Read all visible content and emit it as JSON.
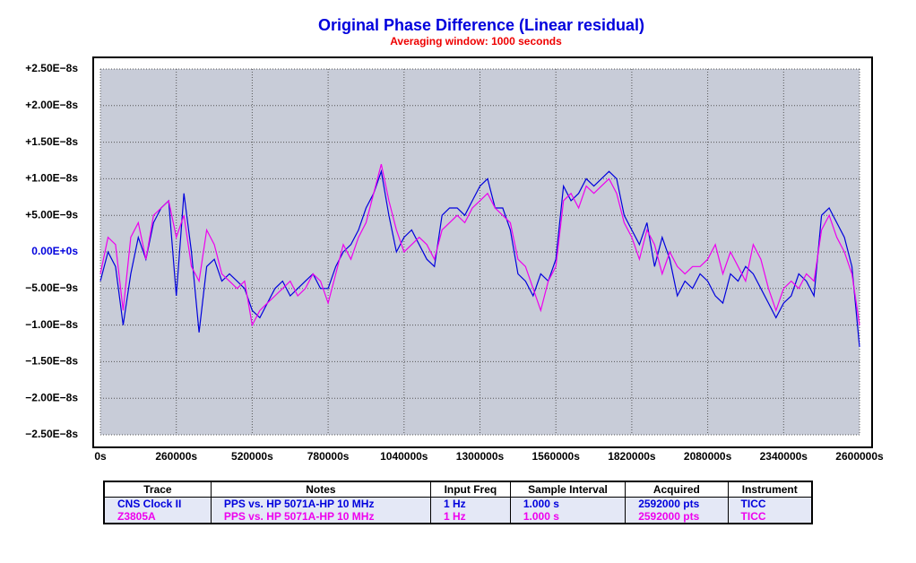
{
  "chart_data": {
    "type": "line",
    "title": "Original Phase Difference (Linear residual)",
    "subtitle": "Averaging window: 1000 seconds",
    "x": [
      0,
      26000,
      52000,
      78000,
      104000,
      130000,
      156000,
      182000,
      208000,
      234000,
      260000,
      286000,
      312000,
      338000,
      364000,
      390000,
      416000,
      442000,
      468000,
      494000,
      520000,
      546000,
      572000,
      598000,
      624000,
      650000,
      676000,
      702000,
      728000,
      754000,
      780000,
      806000,
      832000,
      858000,
      884000,
      910000,
      936000,
      962000,
      988000,
      1014000,
      1040000,
      1066000,
      1092000,
      1118000,
      1144000,
      1170000,
      1196000,
      1222000,
      1248000,
      1274000,
      1300000,
      1326000,
      1352000,
      1378000,
      1404000,
      1430000,
      1456000,
      1482000,
      1508000,
      1534000,
      1560000,
      1586000,
      1612000,
      1638000,
      1664000,
      1690000,
      1716000,
      1742000,
      1768000,
      1794000,
      1820000,
      1846000,
      1872000,
      1898000,
      1924000,
      1950000,
      1976000,
      2002000,
      2028000,
      2054000,
      2080000,
      2106000,
      2132000,
      2158000,
      2184000,
      2210000,
      2236000,
      2262000,
      2288000,
      2314000,
      2340000,
      2366000,
      2392000,
      2418000,
      2444000,
      2470000,
      2496000,
      2522000,
      2548000,
      2574000,
      2600000
    ],
    "series": [
      {
        "name": "CNS Clock II",
        "color": "#0000dd",
        "values": [
          -4e-09,
          0,
          -2e-09,
          -1e-08,
          -3e-09,
          2e-09,
          -1e-09,
          4e-09,
          6e-09,
          7e-09,
          -6e-09,
          8e-09,
          0,
          -1.1e-08,
          -2e-09,
          -1e-09,
          -4e-09,
          -3e-09,
          -4e-09,
          -5e-09,
          -8e-09,
          -9e-09,
          -7e-09,
          -5e-09,
          -4e-09,
          -6e-09,
          -5e-09,
          -4e-09,
          -3e-09,
          -5e-09,
          -5e-09,
          -2e-09,
          0,
          1e-09,
          3e-09,
          6e-09,
          8e-09,
          1.1e-08,
          5e-09,
          0,
          2e-09,
          3e-09,
          1e-09,
          -1e-09,
          -2e-09,
          5e-09,
          6e-09,
          6e-09,
          5e-09,
          7e-09,
          9e-09,
          1e-08,
          6e-09,
          6e-09,
          3e-09,
          -3e-09,
          -4e-09,
          -6e-09,
          -3e-09,
          -4e-09,
          -1e-09,
          9e-09,
          7e-09,
          8e-09,
          1e-08,
          9e-09,
          1e-08,
          1.1e-08,
          1e-08,
          5e-09,
          3e-09,
          1e-09,
          4e-09,
          -2e-09,
          2e-09,
          -1e-09,
          -6e-09,
          -4e-09,
          -5e-09,
          -3e-09,
          -4e-09,
          -6e-09,
          -7e-09,
          -3e-09,
          -4e-09,
          -2e-09,
          -3e-09,
          -5e-09,
          -7e-09,
          -9e-09,
          -7e-09,
          -6e-09,
          -3e-09,
          -4e-09,
          -6e-09,
          5e-09,
          6e-09,
          4e-09,
          2e-09,
          -2e-09,
          -1.3e-08
        ]
      },
      {
        "name": "Z3805A",
        "color": "#ee00ee",
        "values": [
          -3e-09,
          2e-09,
          1e-09,
          -8e-09,
          2e-09,
          4e-09,
          -1e-09,
          5e-09,
          6e-09,
          7e-09,
          2e-09,
          5e-09,
          -2e-09,
          -4e-09,
          3e-09,
          1e-09,
          -3e-09,
          -4e-09,
          -5e-09,
          -4e-09,
          -1e-08,
          -8e-09,
          -7e-09,
          -6e-09,
          -5e-09,
          -4e-09,
          -6e-09,
          -5e-09,
          -3e-09,
          -4e-09,
          -7e-09,
          -3e-09,
          1e-09,
          -1e-09,
          2e-09,
          4e-09,
          8e-09,
          1.2e-08,
          7e-09,
          3e-09,
          0,
          1e-09,
          2e-09,
          1e-09,
          -1e-09,
          3e-09,
          4e-09,
          5e-09,
          4e-09,
          6e-09,
          7e-09,
          8e-09,
          6e-09,
          5e-09,
          4e-09,
          -1e-09,
          -2e-09,
          -5e-09,
          -8e-09,
          -4e-09,
          -2e-09,
          7e-09,
          8e-09,
          6e-09,
          9e-09,
          8e-09,
          9e-09,
          1e-08,
          8e-09,
          4e-09,
          2e-09,
          -1e-09,
          3e-09,
          1e-09,
          -3e-09,
          0,
          -2e-09,
          -3e-09,
          -2e-09,
          -2e-09,
          -1e-09,
          1e-09,
          -3e-09,
          0,
          -2e-09,
          -4e-09,
          1e-09,
          -1e-09,
          -5e-09,
          -8e-09,
          -5e-09,
          -4e-09,
          -5e-09,
          -3e-09,
          -4e-09,
          3e-09,
          5e-09,
          2e-09,
          0,
          -3e-09,
          -1e-08
        ]
      }
    ],
    "xlim": [
      0,
      2600000
    ],
    "xticks": [
      {
        "value": 0,
        "label": "0s"
      },
      {
        "value": 260000,
        "label": "260000s"
      },
      {
        "value": 520000,
        "label": "520000s"
      },
      {
        "value": 780000,
        "label": "780000s"
      },
      {
        "value": 1040000,
        "label": "1040000s"
      },
      {
        "value": 1300000,
        "label": "1300000s"
      },
      {
        "value": 1560000,
        "label": "1560000s"
      },
      {
        "value": 1820000,
        "label": "1820000s"
      },
      {
        "value": 2080000,
        "label": "2080000s"
      },
      {
        "value": 2340000,
        "label": "2340000s"
      },
      {
        "value": 2600000,
        "label": "2600000s"
      }
    ],
    "ylim": [
      -2.5e-08,
      2.5e-08
    ],
    "yticks": [
      {
        "value": 2.5e-08,
        "label": "+2.50E−8s"
      },
      {
        "value": 2e-08,
        "label": "+2.00E−8s"
      },
      {
        "value": 1.5e-08,
        "label": "+1.50E−8s"
      },
      {
        "value": 1e-08,
        "label": "+1.00E−8s"
      },
      {
        "value": 5e-09,
        "label": "+5.00E−9s"
      },
      {
        "value": 0,
        "label": "0.00E+0s"
      },
      {
        "value": -5e-09,
        "label": "−5.00E−9s"
      },
      {
        "value": -1e-08,
        "label": "−1.00E−8s"
      },
      {
        "value": -1.5e-08,
        "label": "−1.50E−8s"
      },
      {
        "value": -2e-08,
        "label": "−2.00E−8s"
      },
      {
        "value": -2.5e-08,
        "label": "−2.50E−8s"
      }
    ],
    "grid": true
  },
  "table": {
    "headers": [
      "Trace",
      "Notes",
      "Input Freq",
      "Sample Interval",
      "Acquired",
      "Instrument"
    ],
    "rows": [
      [
        "CNS Clock II",
        "PPS vs. HP 5071A-HP 10 MHz",
        "1 Hz",
        "1.000 s",
        "2592000 pts",
        "TICC"
      ],
      [
        "Z3805A",
        "PPS vs. HP 5071A-HP 10 MHz",
        "1 Hz",
        "1.000 s",
        "2592000 pts",
        "TICC"
      ]
    ]
  }
}
